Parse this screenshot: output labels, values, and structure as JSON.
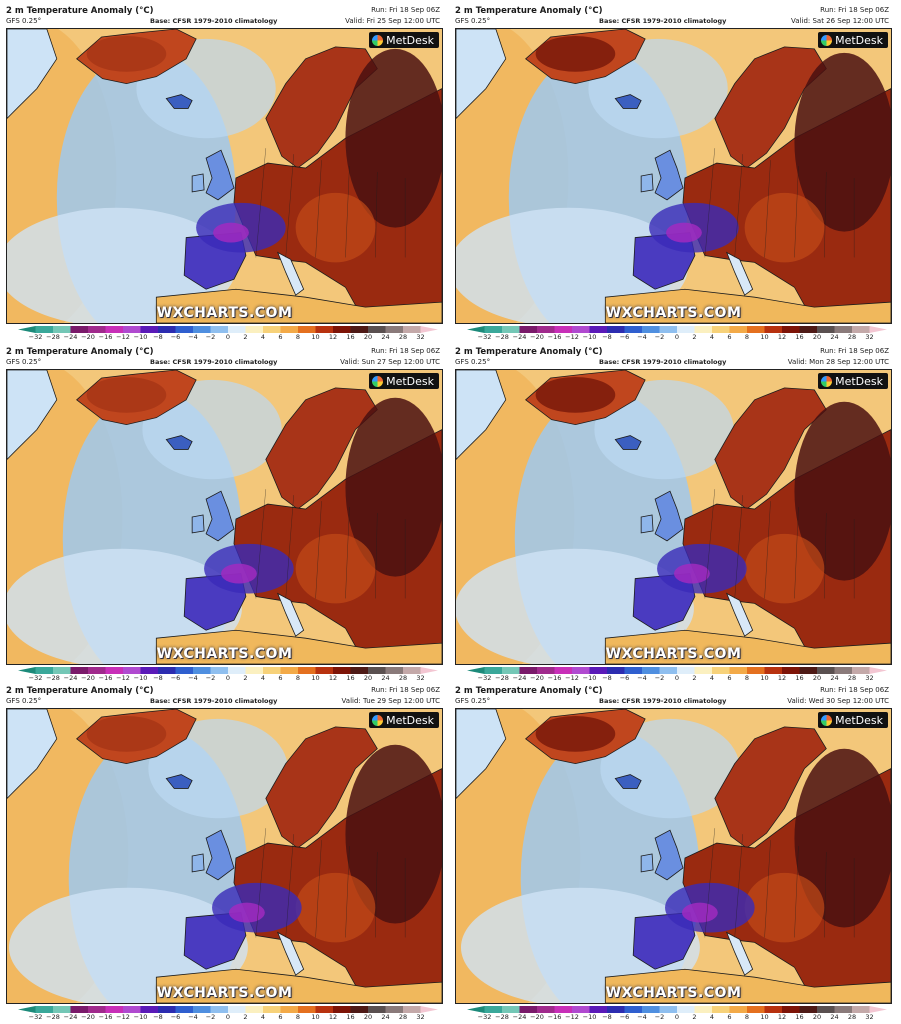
{
  "colorbar": {
    "ticks": [
      "−32",
      "−28",
      "−24",
      "−20",
      "−16",
      "−12",
      "−10",
      "−8",
      "−6",
      "−4",
      "−2",
      "0",
      "2",
      "4",
      "6",
      "8",
      "10",
      "12",
      "16",
      "20",
      "24",
      "28",
      "32"
    ],
    "colors": [
      "#1c8a7a",
      "#3aa89a",
      "#74c7b6",
      "#7a1a6a",
      "#a02a8c",
      "#c82fb8",
      "#b04ad0",
      "#5a1ab8",
      "#2c2cb0",
      "#2f5fcf",
      "#4f8fe0",
      "#8fbfef",
      "#dfeefa",
      "#fbf0c0",
      "#f7d27a",
      "#f3aa48",
      "#e4701f",
      "#b8320f",
      "#7e1407",
      "#4e1a16",
      "#5a5050",
      "#8a7a7a",
      "#c4a9a9",
      "#f3c6d2"
    ]
  },
  "brand": {
    "name": "MetDesk",
    "watermark": "WXCHARTS.COM"
  },
  "panels": [
    {
      "title": "2 m Temperature Anomaly (°C)",
      "model": "GFS 0.25°",
      "base": "Base: CFSR 1979-2010 climatology",
      "run": "Run: Fri 18 Sep 06Z",
      "valid": "Valid: Fri 25 Sep 12:00 UTC"
    },
    {
      "title": "2 m Temperature Anomaly (°C)",
      "model": "GFS 0.25°",
      "base": "Base: CFSR 1979-2010 climatology",
      "run": "Run: Fri 18 Sep 06Z",
      "valid": "Valid: Sat 26 Sep 12:00 UTC"
    },
    {
      "title": "2 m Temperature Anomaly (°C)",
      "model": "GFS 0.25°",
      "base": "Base: CFSR 1979-2010 climatology",
      "run": "Run: Fri 18 Sep 06Z",
      "valid": "Valid: Sun 27 Sep 12:00 UTC"
    },
    {
      "title": "2 m Temperature Anomaly (°C)",
      "model": "GFS 0.25°",
      "base": "Base: CFSR 1979-2010 climatology",
      "run": "Run: Fri 18 Sep 06Z",
      "valid": "Valid: Mon 28 Sep 12:00 UTC"
    },
    {
      "title": "2 m Temperature Anomaly (°C)",
      "model": "GFS 0.25°",
      "base": "Base: CFSR 1979-2010 climatology",
      "run": "Run: Fri 18 Sep 06Z",
      "valid": "Valid: Tue 29 Sep 12:00 UTC"
    },
    {
      "title": "2 m Temperature Anomaly (°C)",
      "model": "GFS 0.25°",
      "base": "Base: CFSR 1979-2010 climatology",
      "run": "Run: Fri 18 Sep 06Z",
      "valid": "Valid: Wed 30 Sep 12:00 UTC"
    }
  ]
}
